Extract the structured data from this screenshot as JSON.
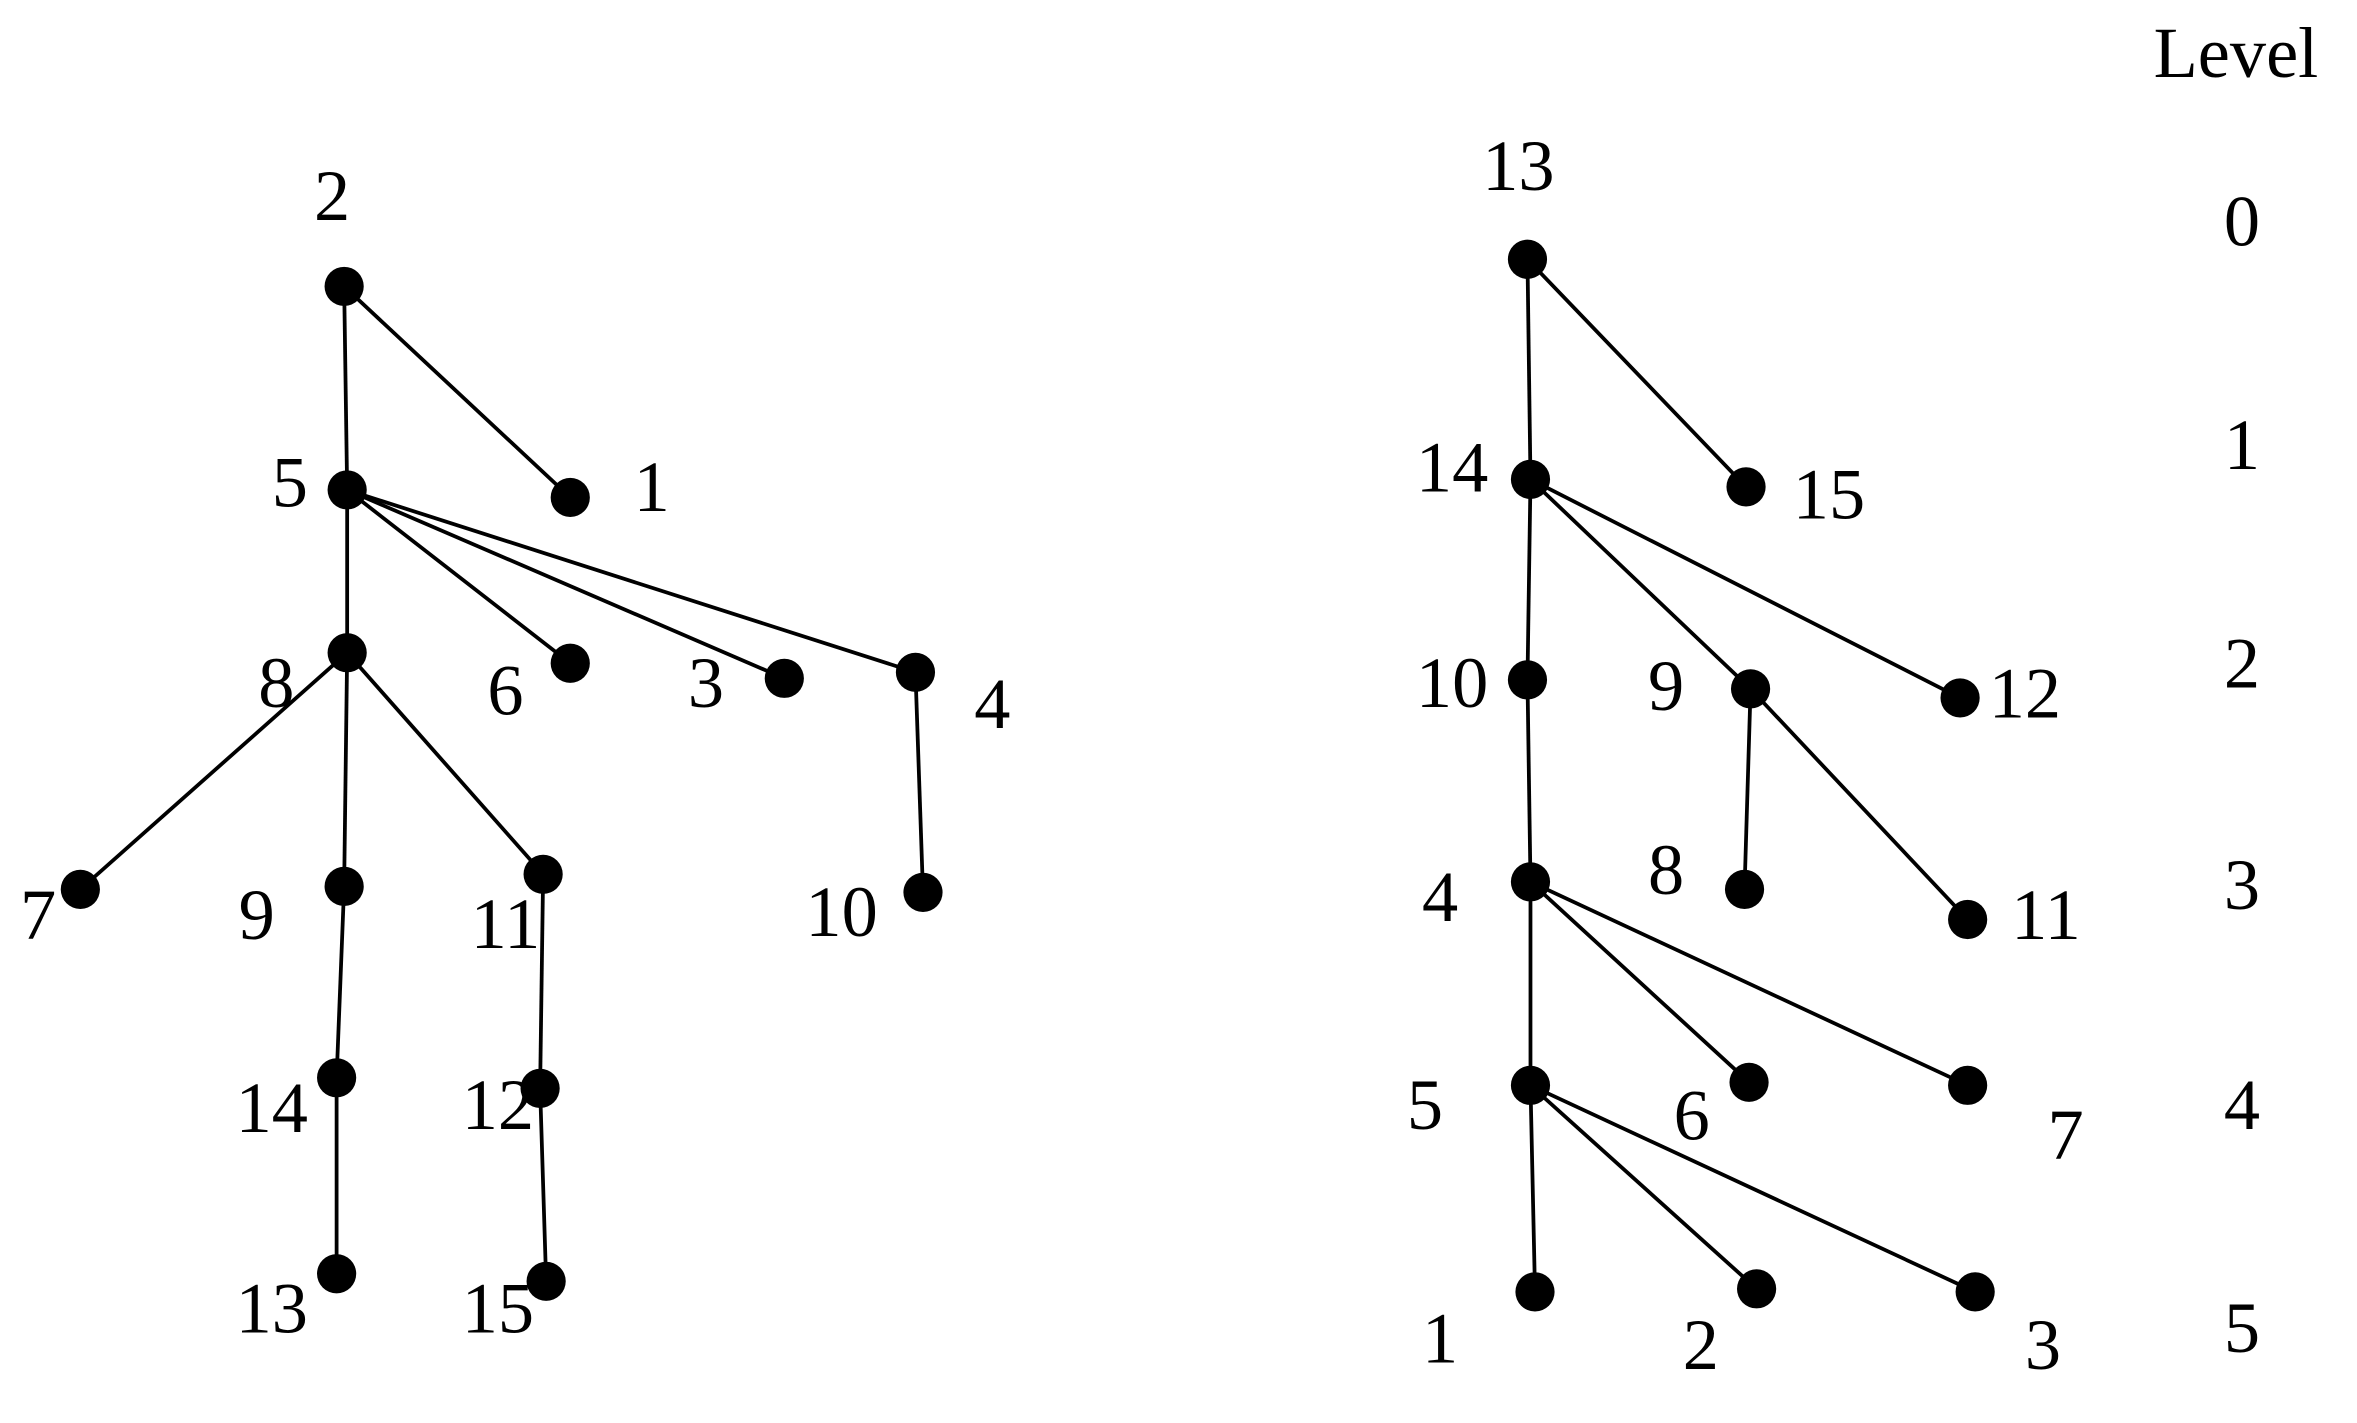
{
  "left_tree": {
    "nodes": [
      "2",
      "5",
      "1",
      "8",
      "6",
      "3",
      "4",
      "7",
      "9",
      "11",
      "10",
      "14",
      "12",
      "13",
      "15"
    ]
  },
  "right_tree": {
    "nodes": [
      "13",
      "14",
      "15",
      "10",
      "9",
      "12",
      "4",
      "8",
      "11",
      "5",
      "6",
      "7",
      "1",
      "2",
      "3"
    ]
  },
  "levels": {
    "title": "Level",
    "labels": [
      "0",
      "1",
      "2",
      "3",
      "4",
      "5"
    ]
  }
}
